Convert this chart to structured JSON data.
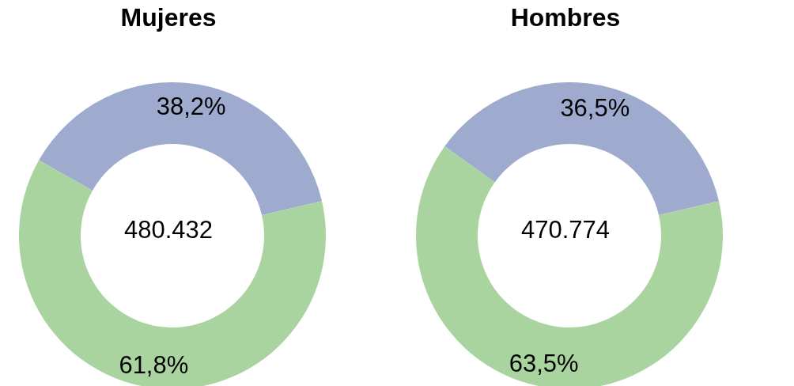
{
  "chart_data": [
    {
      "type": "donut",
      "title": "Mujeres",
      "categories": [
        null,
        null
      ],
      "values": [
        38.2,
        61.8
      ],
      "value_labels": [
        "38,2%",
        "61,8%"
      ],
      "colors": [
        "#9eabce",
        "#a9d4a0"
      ],
      "annotations": [
        "480.432"
      ]
    },
    {
      "type": "donut",
      "title": "Hombres",
      "categories": [
        null,
        null
      ],
      "values": [
        36.5,
        63.5
      ],
      "value_labels": [
        "36,5%",
        "63,5%"
      ],
      "colors": [
        "#9eabce",
        "#a9d4a0"
      ],
      "annotations": [
        "470.774"
      ]
    }
  ]
}
